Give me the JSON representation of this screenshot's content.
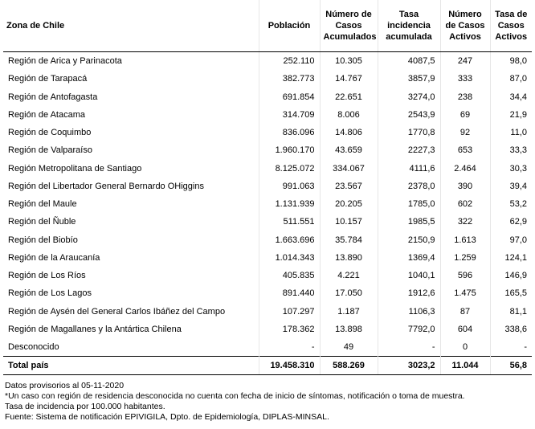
{
  "table": {
    "headers": [
      "Zona de Chile",
      "Población",
      "Número de Casos Acumulados",
      "Tasa incidencia acumulada",
      "Número de Casos Activos",
      "Tasa de Casos Activos"
    ],
    "rows": [
      [
        "Región de Arica y Parinacota",
        "252.110",
        "10.305",
        "4087,5",
        "247",
        "98,0"
      ],
      [
        "Región de Tarapacá",
        "382.773",
        "14.767",
        "3857,9",
        "333",
        "87,0"
      ],
      [
        "Región de Antofagasta",
        "691.854",
        "22.651",
        "3274,0",
        "238",
        "34,4"
      ],
      [
        "Región de Atacama",
        "314.709",
        "8.006",
        "2543,9",
        "69",
        "21,9"
      ],
      [
        "Región de Coquimbo",
        "836.096",
        "14.806",
        "1770,8",
        "92",
        "11,0"
      ],
      [
        "Región de Valparaíso",
        "1.960.170",
        "43.659",
        "2227,3",
        "653",
        "33,3"
      ],
      [
        "Región Metropolitana de Santiago",
        "8.125.072",
        "334.067",
        "4111,6",
        "2.464",
        "30,3"
      ],
      [
        "Región del Libertador General Bernardo OHiggins",
        "991.063",
        "23.567",
        "2378,0",
        "390",
        "39,4"
      ],
      [
        "Región del Maule",
        "1.131.939",
        "20.205",
        "1785,0",
        "602",
        "53,2"
      ],
      [
        "Región del Ñuble",
        "511.551",
        "10.157",
        "1985,5",
        "322",
        "62,9"
      ],
      [
        "Región del Biobío",
        "1.663.696",
        "35.784",
        "2150,9",
        "1.613",
        "97,0"
      ],
      [
        "Región de la Araucanía",
        "1.014.343",
        "13.890",
        "1369,4",
        "1.259",
        "124,1"
      ],
      [
        "Región de Los Ríos",
        "405.835",
        "4.221",
        "1040,1",
        "596",
        "146,9"
      ],
      [
        "Región de Los Lagos",
        "891.440",
        "17.050",
        "1912,6",
        "1.475",
        "165,5"
      ],
      [
        "Región de Aysén del General Carlos Ibáñez del Campo",
        "107.297",
        "1.187",
        "1106,3",
        "87",
        "81,1"
      ],
      [
        "Región de Magallanes y la Antártica Chilena",
        "178.362",
        "13.898",
        "7792,0",
        "604",
        "338,6"
      ],
      [
        "Desconocido",
        "-",
        "49",
        "-",
        "0",
        "-"
      ]
    ],
    "total": [
      "Total país",
      "19.458.310",
      "588.269",
      "3023,2",
      "11.044",
      "56,8"
    ]
  },
  "notes": [
    "Datos provisorios al 05-11-2020",
    "*Un caso con región de residencia desconocida no cuenta con fecha de inicio de síntomas, notificación o toma de muestra.",
    "Tasa de incidencia por 100.000 habitantes.",
    "Fuente: Sistema de notificación EPIVIGILA, Dpto. de Epidemiología, DIPLAS-MINSAL."
  ]
}
